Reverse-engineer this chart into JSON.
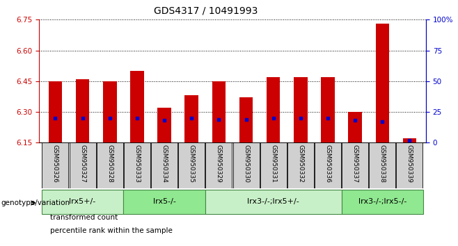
{
  "title": "GDS4317 / 10491993",
  "samples": [
    "GSM950326",
    "GSM950327",
    "GSM950328",
    "GSM950333",
    "GSM950334",
    "GSM950335",
    "GSM950329",
    "GSM950330",
    "GSM950331",
    "GSM950332",
    "GSM950336",
    "GSM950337",
    "GSM950338",
    "GSM950339"
  ],
  "transformed_count": [
    6.45,
    6.46,
    6.45,
    6.5,
    6.32,
    6.38,
    6.45,
    6.37,
    6.47,
    6.47,
    6.47,
    6.3,
    6.73,
    6.17
  ],
  "percentile_rank": [
    20,
    20,
    20,
    20,
    18,
    20,
    19,
    19,
    20,
    20,
    20,
    18,
    17,
    2
  ],
  "ylim_left": [
    6.15,
    6.75
  ],
  "ylim_right": [
    0,
    100
  ],
  "yticks_left": [
    6.15,
    6.3,
    6.45,
    6.6,
    6.75
  ],
  "yticks_right": [
    0,
    25,
    50,
    75,
    100
  ],
  "ytick_labels_right": [
    "0",
    "25",
    "50",
    "75",
    "100%"
  ],
  "bar_color": "#cc0000",
  "dot_color": "#0000cc",
  "bar_width": 0.5,
  "baseline": 6.15,
  "groups": [
    {
      "label": "lrx5+/-",
      "start": 0,
      "end": 3,
      "color": "#c8f0c8"
    },
    {
      "label": "lrx5-/-",
      "start": 3,
      "end": 6,
      "color": "#90e890"
    },
    {
      "label": "lrx3-/-;lrx5+/-",
      "start": 6,
      "end": 11,
      "color": "#c8f0c8"
    },
    {
      "label": "lrx3-/-;lrx5-/-",
      "start": 11,
      "end": 14,
      "color": "#90e890"
    }
  ],
  "legend_items": [
    {
      "label": "transformed count",
      "color": "#cc0000"
    },
    {
      "label": "percentile rank within the sample",
      "color": "#0000cc"
    }
  ],
  "genotype_label": "genotype/variation",
  "background_color": "#ffffff",
  "tick_color_left": "#cc0000",
  "tick_color_right": "#0000cc",
  "title_fontsize": 10,
  "tick_fontsize": 7.5,
  "sample_fontsize": 6.5,
  "group_fontsize": 8,
  "legend_fontsize": 7.5
}
